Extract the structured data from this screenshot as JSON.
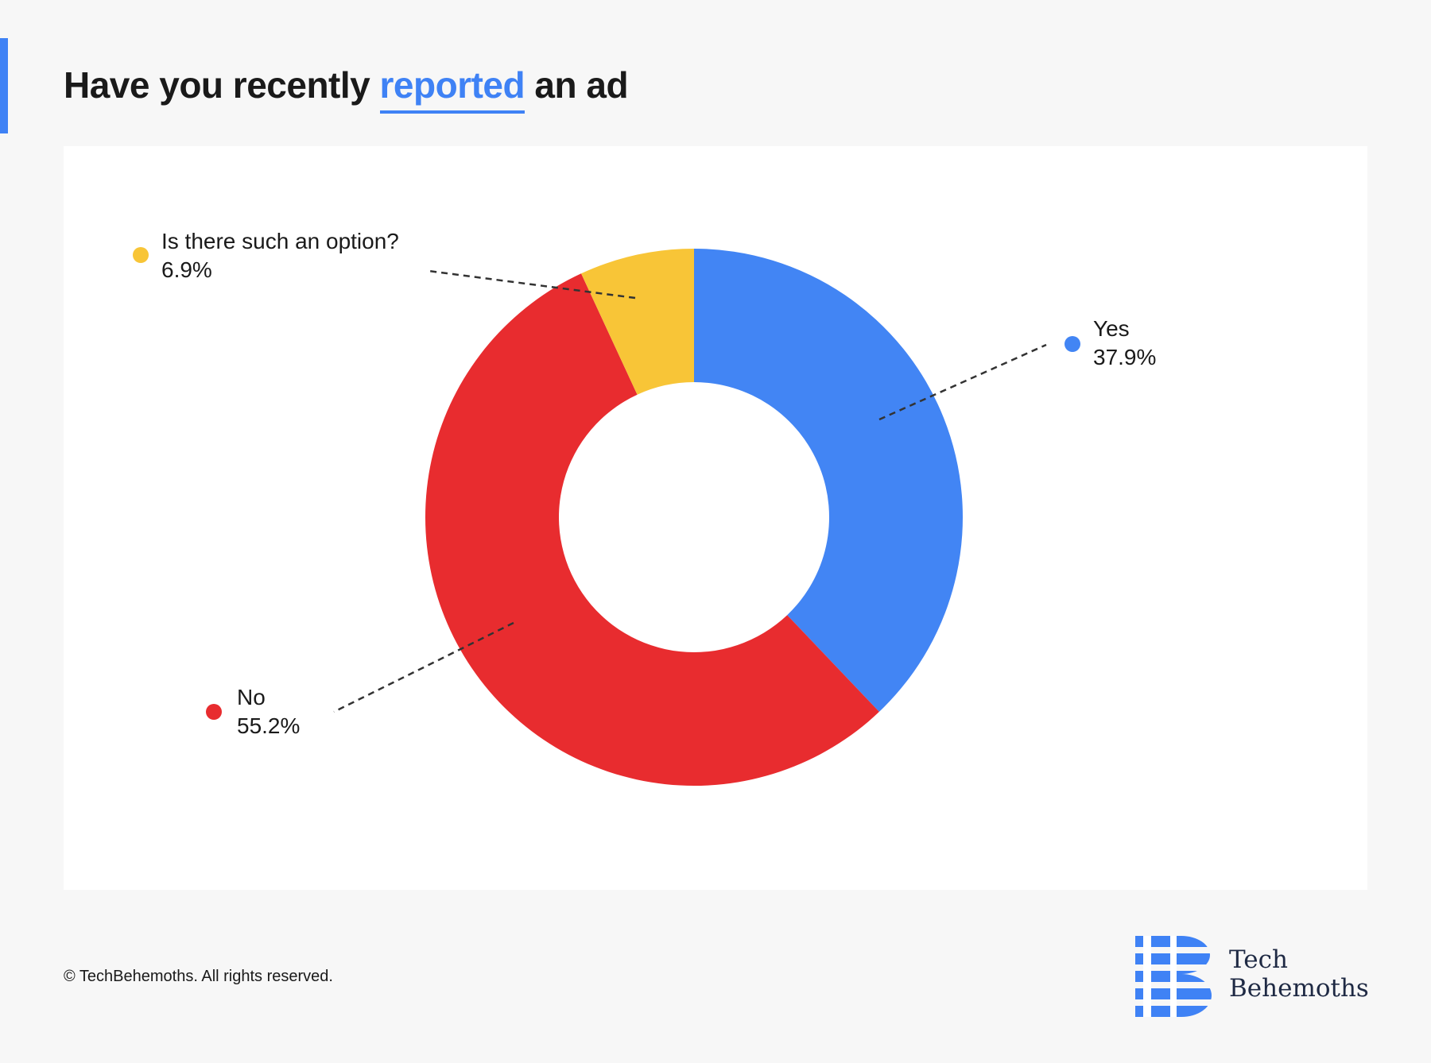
{
  "title": {
    "before": "Have you recently",
    "highlight": "reported",
    "after": "an ad"
  },
  "colors": {
    "accent": "#3f82f5",
    "text": "#1a1a1a",
    "background": "#f7f7f7",
    "panel": "#ffffff",
    "logo_text": "#1f2a44"
  },
  "chart_data": {
    "type": "pie",
    "variant": "donut",
    "categories": [
      "Yes",
      "No",
      "Is there such an option?"
    ],
    "values": [
      37.9,
      55.2,
      6.9
    ],
    "value_labels": [
      "37.9%",
      "55.2%",
      "6.9%"
    ],
    "colors": [
      "#4285f4",
      "#e82c2f",
      "#f8c537"
    ],
    "start": "12 o'clock",
    "direction": "clockwise",
    "legend": "inline labels with dashed leader lines"
  },
  "footer": {
    "copyright": "© TechBehemoths. All rights reserved."
  },
  "logo": {
    "line1": "Tech",
    "line2": "Behemoths"
  }
}
